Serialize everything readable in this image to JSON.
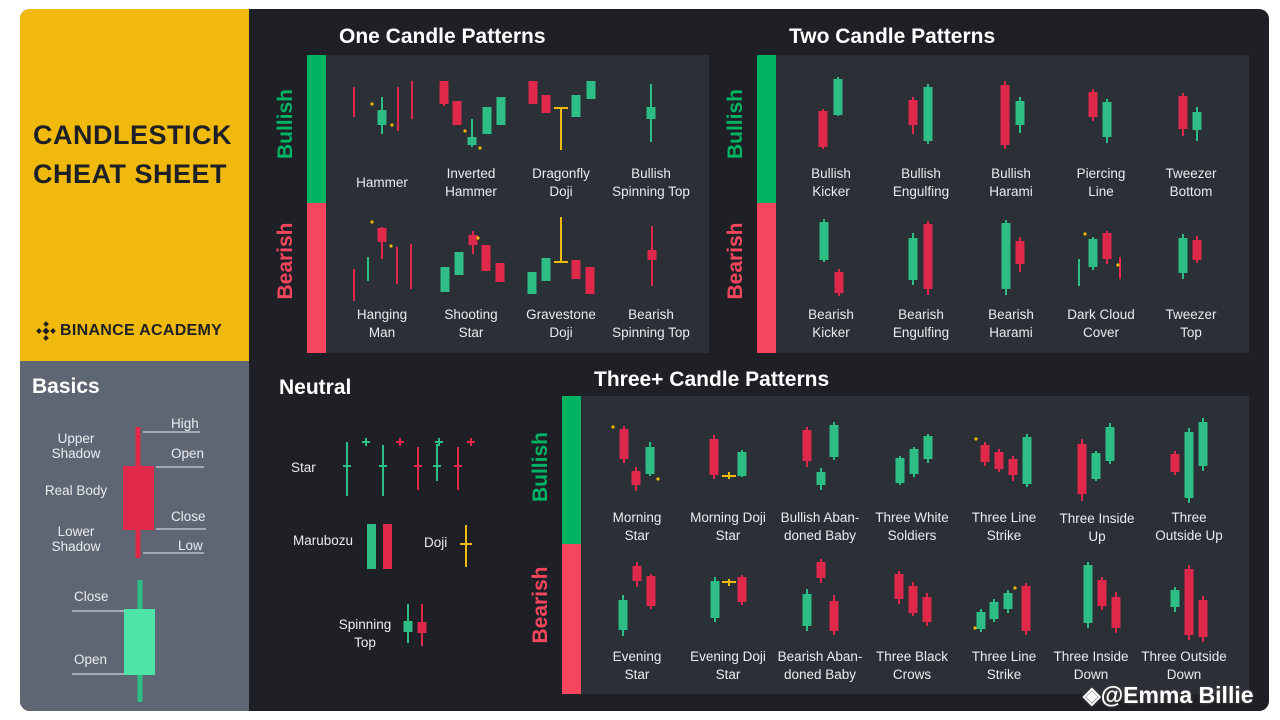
{
  "title": {
    "line1": "CANDLESTICK",
    "line2": "CHEAT SHEET"
  },
  "brand": {
    "name": "BINANCE ACADEMY"
  },
  "basics": {
    "heading": "Basics",
    "upper_shadow": "Upper Shadow",
    "real_body": "Real Body",
    "lower_shadow": "Lower Shadow",
    "high": "High",
    "open": "Open",
    "close": "Close",
    "low": "Low",
    "close2": "Close",
    "open2": "Open"
  },
  "one_candle": {
    "heading": "One Candle Patterns",
    "bullish": "Bullish",
    "bearish": "Bearish",
    "bullish_patterns": [
      {
        "line1": "Hammer",
        "line2": ""
      },
      {
        "line1": "Inverted",
        "line2": "Hammer"
      },
      {
        "line1": "Dragonfly",
        "line2": "Doji"
      },
      {
        "line1": "Bullish",
        "line2": "Spinning Top"
      }
    ],
    "bearish_patterns": [
      {
        "line1": "Hanging",
        "line2": "Man"
      },
      {
        "line1": "Shooting",
        "line2": "Star"
      },
      {
        "line1": "Gravestone",
        "line2": "Doji"
      },
      {
        "line1": "Bearish",
        "line2": "Spinning Top"
      }
    ]
  },
  "two_candle": {
    "heading": "Two Candle Patterns",
    "bullish": "Bullish",
    "bearish": "Bearish",
    "bullish_patterns": [
      {
        "line1": "Bullish",
        "line2": "Kicker"
      },
      {
        "line1": "Bullish",
        "line2": "Engulfing"
      },
      {
        "line1": "Bullish",
        "line2": "Harami"
      },
      {
        "line1": "Piercing",
        "line2": "Line"
      },
      {
        "line1": "Tweezer",
        "line2": "Bottom"
      }
    ],
    "bearish_patterns": [
      {
        "line1": "Bearish",
        "line2": "Kicker"
      },
      {
        "line1": "Bearish",
        "line2": "Engulfing"
      },
      {
        "line1": "Bearish",
        "line2": "Harami"
      },
      {
        "line1": "Dark Cloud",
        "line2": "Cover"
      },
      {
        "line1": "Tweezer",
        "line2": "Top"
      }
    ]
  },
  "neutral": {
    "heading": "Neutral",
    "star": "Star",
    "marubozu": "Marubozu",
    "doji": "Doji",
    "spinning_top_1": "Spinning",
    "spinning_top_2": "Top"
  },
  "three_candle": {
    "heading": "Three+ Candle Patterns",
    "bullish": "Bullish",
    "bearish": "Bearish",
    "bullish_patterns": [
      {
        "line1": "Morning",
        "line2": "Star"
      },
      {
        "line1": "Morning Doji",
        "line2": "Star"
      },
      {
        "line1": "Bullish Aban-",
        "line2": "doned Baby"
      },
      {
        "line1": "Three White",
        "line2": "Soldiers"
      },
      {
        "line1": "Three Line",
        "line2": "Strike"
      },
      {
        "line1": "Three Inside",
        "line2": "Up"
      },
      {
        "line1": "Three",
        "line2": "Outside Up"
      }
    ],
    "bearish_patterns": [
      {
        "line1": "Evening",
        "line2": "Star"
      },
      {
        "line1": "Evening Doji",
        "line2": "Star"
      },
      {
        "line1": "Bearish Aban-",
        "line2": "doned Baby"
      },
      {
        "line1": "Three Black",
        "line2": "Crows"
      },
      {
        "line1": "Three Line",
        "line2": "Strike"
      },
      {
        "line1": "Three Inside",
        "line2": "Down"
      },
      {
        "line1": "Three Outside",
        "line2": "Down"
      }
    ]
  },
  "watermark": "@Emma Billie",
  "colors": {
    "bull": "#2ebd85",
    "bear": "#e0294a",
    "bull_bar": "#00b464",
    "bear_bar": "#f6465d",
    "doji": "#f0b90b",
    "panel": "#2b2f36",
    "background": "#1e2026"
  }
}
